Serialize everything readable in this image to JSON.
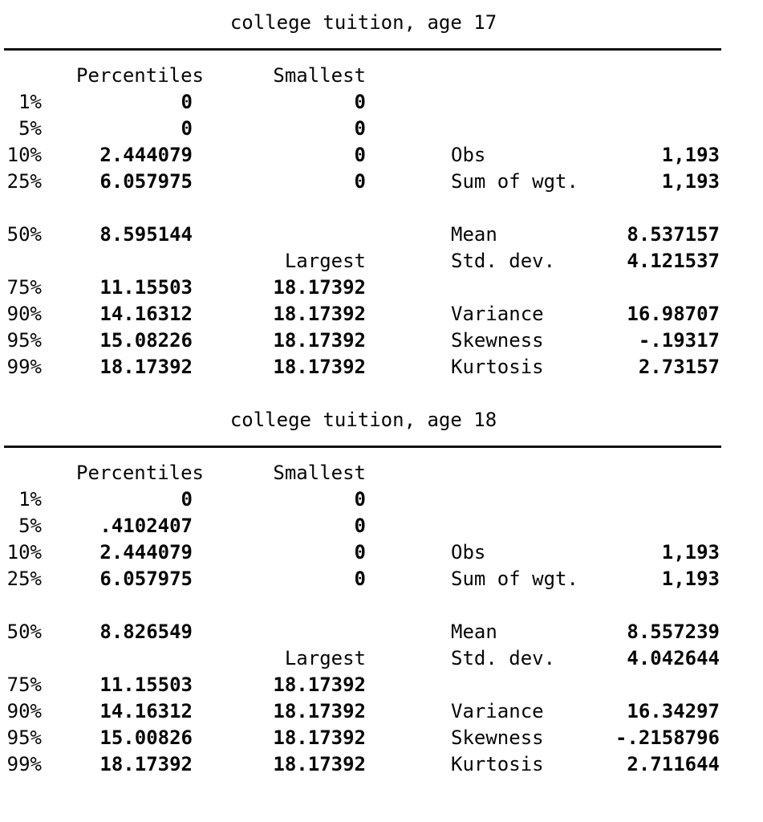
{
  "page": {
    "background": "#ffffff",
    "text_color": "#060606"
  },
  "tables": [
    {
      "title": "college tuition, age 17",
      "headers": {
        "percentiles": "Percentiles",
        "smallest": "Smallest"
      },
      "rows": [
        {
          "pct": "1%",
          "pctl": "0",
          "small": "0"
        },
        {
          "pct": "5%",
          "pctl": "0",
          "small": "0"
        },
        {
          "pct": "10%",
          "pctl": "2.444079",
          "small": "0",
          "stat": "Obs",
          "val": "1,193"
        },
        {
          "pct": "25%",
          "pctl": "6.057975",
          "small": "0",
          "stat": "Sum of wgt.",
          "val": "1,193"
        },
        {
          "blank": true
        },
        {
          "pct": "50%",
          "pctl": "8.595144",
          "small": "",
          "stat": "Mean",
          "val": "8.537157"
        },
        {
          "pct": "",
          "pctl": "",
          "small": "Largest",
          "small_is_label": true,
          "stat": "Std. dev.",
          "val": "4.121537"
        },
        {
          "pct": "75%",
          "pctl": "11.15503",
          "small": "18.17392"
        },
        {
          "pct": "90%",
          "pctl": "14.16312",
          "small": "18.17392",
          "stat": "Variance",
          "val": "16.98707"
        },
        {
          "pct": "95%",
          "pctl": "15.08226",
          "small": "18.17392",
          "stat": "Skewness",
          "val": "-.19317"
        },
        {
          "pct": "99%",
          "pctl": "18.17392",
          "small": "18.17392",
          "stat": "Kurtosis",
          "val": "2.73157"
        }
      ]
    },
    {
      "title": "college tuition, age 18",
      "headers": {
        "percentiles": "Percentiles",
        "smallest": "Smallest"
      },
      "rows": [
        {
          "pct": "1%",
          "pctl": "0",
          "small": "0"
        },
        {
          "pct": "5%",
          "pctl": ".4102407",
          "small": "0"
        },
        {
          "pct": "10%",
          "pctl": "2.444079",
          "small": "0",
          "stat": "Obs",
          "val": "1,193"
        },
        {
          "pct": "25%",
          "pctl": "6.057975",
          "small": "0",
          "stat": "Sum of wgt.",
          "val": "1,193"
        },
        {
          "blank": true
        },
        {
          "pct": "50%",
          "pctl": "8.826549",
          "small": "",
          "stat": "Mean",
          "val": "8.557239"
        },
        {
          "pct": "",
          "pctl": "",
          "small": "Largest",
          "small_is_label": true,
          "stat": "Std. dev.",
          "val": "4.042644"
        },
        {
          "pct": "75%",
          "pctl": "11.15503",
          "small": "18.17392"
        },
        {
          "pct": "90%",
          "pctl": "14.16312",
          "small": "18.17392",
          "stat": "Variance",
          "val": "16.34297"
        },
        {
          "pct": "95%",
          "pctl": "15.00826",
          "small": "18.17392",
          "stat": "Skewness",
          "val": "-.2158796"
        },
        {
          "pct": "99%",
          "pctl": "18.17392",
          "small": "18.17392",
          "stat": "Kurtosis",
          "val": "2.711644"
        }
      ]
    }
  ]
}
